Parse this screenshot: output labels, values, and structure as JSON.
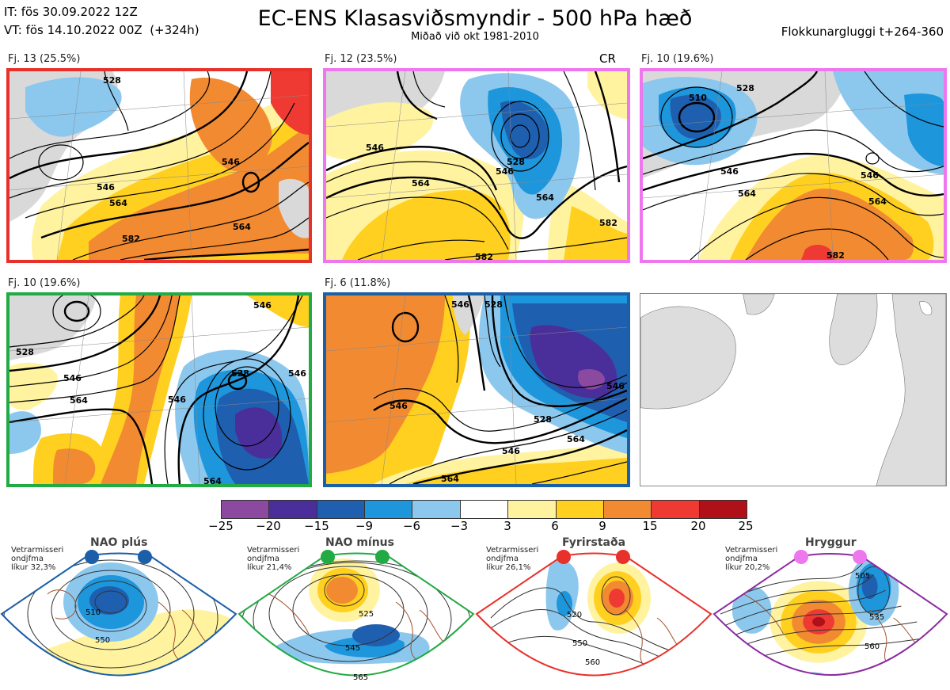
{
  "header": {
    "it_line": "IT: fös 30.09.2022 12Z",
    "vt_line": "VT: fös 14.10.2022 00Z  (+324h)",
    "title": "EC-ENS Klasasviðsmyndir - 500 hPa hæð",
    "subtitle": "Miðað við okt 1981-2010",
    "right": "Flokkunargluggi t+264-360"
  },
  "panels": [
    {
      "label": "Fj. 13 (25.5%)",
      "border": "#e8312b",
      "contours": [
        "528",
        "546",
        "564",
        "582",
        "546",
        "564"
      ]
    },
    {
      "label": "Fj. 12 (23.5%)",
      "border": "#ee77ee",
      "tag": "CR",
      "contours": [
        "546",
        "564",
        "528",
        "546",
        "564",
        "582",
        "582"
      ]
    },
    {
      "label": "Fj. 10 (19.6%)",
      "border": "#ee77ee",
      "contours": [
        "510",
        "528",
        "546",
        "564",
        "546",
        "564",
        "582"
      ]
    },
    {
      "label": "Fj. 10 (19.6%)",
      "border": "#22aa44",
      "contours": [
        "546",
        "528",
        "546",
        "564",
        "546",
        "528",
        "546",
        "564"
      ]
    },
    {
      "label": "Fj. 6 (11.8%)",
      "border": "#1a5fa8",
      "contours": [
        "546",
        "528",
        "546",
        "528",
        "546",
        "546",
        "564",
        "564"
      ]
    }
  ],
  "colorbar": {
    "labels": [
      "−25",
      "−20",
      "−15",
      "−9",
      "−6",
      "−3",
      "3",
      "6",
      "9",
      "15",
      "20",
      "25"
    ],
    "colors": [
      "#8b4aa0",
      "#4a2f9a",
      "#1f5fb0",
      "#1e96dc",
      "#8cc8ee",
      "#ffffff",
      "#fff3a0",
      "#ffd020",
      "#f28a32",
      "#ee3a32",
      "#b01018"
    ]
  },
  "regimes": [
    {
      "name": "NAO plús",
      "note": [
        "Vetrarmisseri",
        "ondjfma",
        "líkur 32,3%"
      ],
      "dot_color": "#1a5fa8",
      "contours": [
        "510",
        "550"
      ]
    },
    {
      "name": "NAO mínus",
      "note": [
        "Vetrarmisseri",
        "ondjfma",
        "líkur 21,4%"
      ],
      "dot_color": "#22aa44",
      "contours": [
        "525",
        "545",
        "565"
      ]
    },
    {
      "name": "Fyrirstaða",
      "note": [
        "Vetrarmisseri",
        "ondjfma",
        "líkur 26,1%"
      ],
      "dot_color": "#e8312b",
      "contours": [
        "520",
        "550",
        "560"
      ]
    },
    {
      "name": "Hryggur",
      "note": [
        "Vetrarmisseri",
        "ondjfma",
        "líkur 20,2%"
      ],
      "dot_color": "#ee77ee",
      "contours": [
        "505",
        "535",
        "560"
      ]
    }
  ]
}
